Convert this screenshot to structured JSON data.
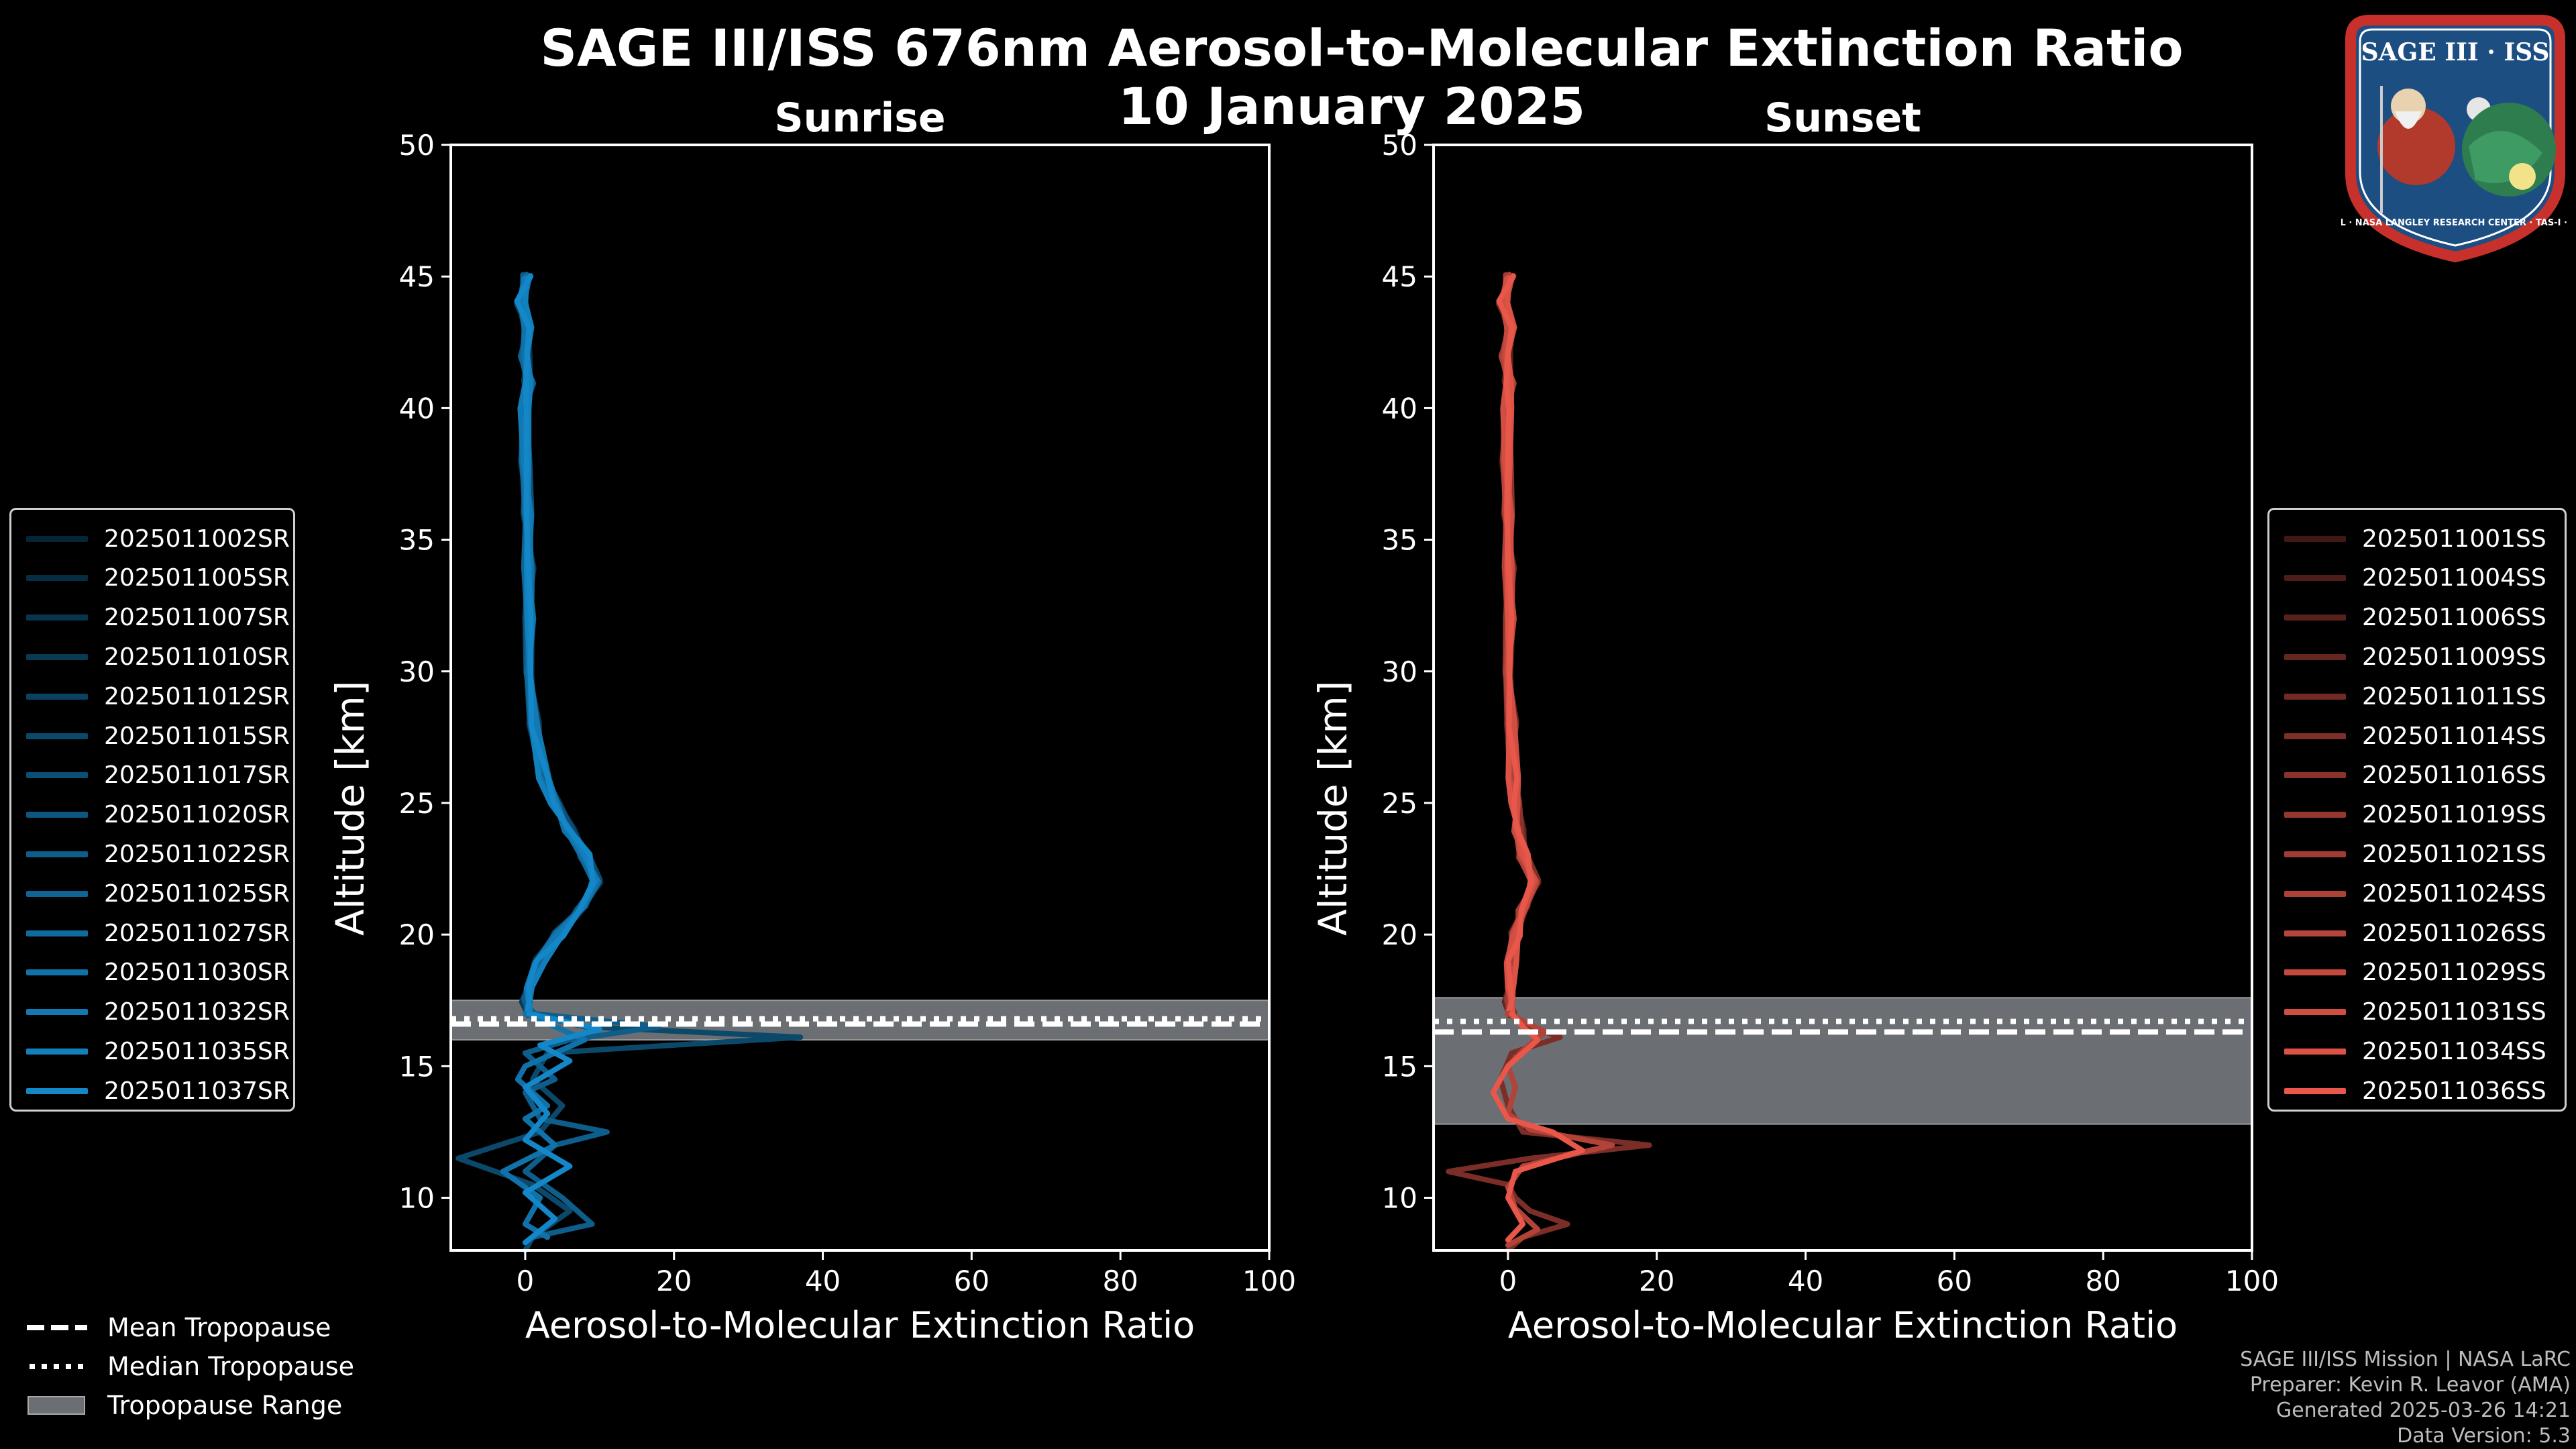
{
  "title_line1": "SAGE III/ISS 676nm Aerosol-to-Molecular Extinction Ratio",
  "title_line2": "10 January 2025",
  "colors": {
    "sunrise": "#1487c8",
    "sunset": "#e8574a",
    "tropopause_band": "#6b6e72",
    "background": "#000000"
  },
  "logo": {
    "line1": "SAGE III · ISS",
    "ring_text": "BALL · NASA LANGLEY RESEARCH CENTER · TAS-I · ESA"
  },
  "bottom_legend": {
    "mean": "Mean Tropopause",
    "median": "Median Tropopause",
    "range": "Tropopause Range"
  },
  "credits": [
    "SAGE III/ISS Mission | NASA LaRC",
    "Preparer: Kevin R. Leavor (AMA)",
    "Generated 2025-03-26 14:21",
    "Data Version: 5.3"
  ],
  "chart_data": [
    {
      "type": "line",
      "title": "Sunrise",
      "xlabel": "Aerosol-to-Molecular Extinction Ratio",
      "ylabel": "Altitude [km]",
      "xlim": [
        -10,
        100
      ],
      "ylim": [
        8,
        50
      ],
      "xticks": [
        0,
        20,
        40,
        60,
        80,
        100
      ],
      "yticks": [
        10,
        15,
        20,
        25,
        30,
        35,
        40,
        45,
        50
      ],
      "tropopause": {
        "mean": 16.6,
        "median": 16.8,
        "range": [
          16.0,
          17.5
        ]
      },
      "legend_entries": [
        "2025011002SR",
        "2025011005SR",
        "2025011007SR",
        "2025011010SR",
        "2025011012SR",
        "2025011015SR",
        "2025011017SR",
        "2025011020SR",
        "2025011022SR",
        "2025011025SR",
        "2025011027SR",
        "2025011030SR",
        "2025011032SR",
        "2025011035SR",
        "2025011037SR"
      ],
      "base_profile": {
        "alt": [
          45,
          44,
          43,
          42,
          41,
          40,
          38,
          36,
          34,
          32,
          30,
          28,
          26,
          25,
          24,
          23,
          22,
          21,
          20,
          19,
          18,
          17.5,
          17
        ],
        "ratio": [
          0.2,
          -0.5,
          0.3,
          0.0,
          0.5,
          0.0,
          0.0,
          0.3,
          0.5,
          0.5,
          0.8,
          1.2,
          2.5,
          4.0,
          6.0,
          8.0,
          9.5,
          7.5,
          4.5,
          2.0,
          0.5,
          0.2,
          0.5
        ]
      },
      "low_traces": [
        {
          "alt": [
            17,
            16.5,
            16.1,
            15.5,
            14.5,
            13.5,
            12.5,
            11.5,
            10.5,
            9.5,
            8.5,
            8.0
          ],
          "ratio": [
            0.5,
            8,
            37,
            3,
            1,
            5,
            2,
            -9,
            1,
            6,
            1,
            0
          ]
        },
        {
          "alt": [
            17,
            16.5,
            16,
            15.5,
            14.5,
            14,
            13,
            12.5,
            12,
            11,
            10,
            9,
            8.5
          ],
          "ratio": [
            1,
            18,
            6,
            0,
            4,
            0,
            2,
            11,
            4,
            0,
            5,
            9,
            1
          ]
        },
        {
          "alt": [
            17,
            16.5,
            16,
            15,
            14.5,
            13.5,
            13,
            12,
            11,
            10,
            9,
            8.5
          ],
          "ratio": [
            0,
            4,
            8,
            0,
            -1,
            3,
            0,
            4,
            -3,
            2,
            0,
            3
          ]
        },
        {
          "alt": [
            17,
            16.4,
            15.8,
            15.2,
            14.2,
            13.2,
            12.2,
            11.2,
            10.2,
            9.2,
            8.3
          ],
          "ratio": [
            0.5,
            10,
            2,
            6,
            0,
            3,
            0,
            6,
            0,
            4,
            0
          ]
        }
      ]
    },
    {
      "type": "line",
      "title": "Sunset",
      "xlabel": "Aerosol-to-Molecular Extinction Ratio",
      "ylabel": "Altitude [km]",
      "xlim": [
        -10,
        100
      ],
      "ylim": [
        8,
        50
      ],
      "xticks": [
        0,
        20,
        40,
        60,
        80,
        100
      ],
      "yticks": [
        10,
        15,
        20,
        25,
        30,
        35,
        40,
        45,
        50
      ],
      "tropopause": {
        "mean": 16.3,
        "median": 16.7,
        "range": [
          12.8,
          17.6
        ]
      },
      "legend_entries": [
        "2025011001SS",
        "2025011004SS",
        "2025011006SS",
        "2025011009SS",
        "2025011011SS",
        "2025011014SS",
        "2025011016SS",
        "2025011019SS",
        "2025011021SS",
        "2025011024SS",
        "2025011026SS",
        "2025011029SS",
        "2025011031SS",
        "2025011034SS",
        "2025011036SS"
      ],
      "base_profile": {
        "alt": [
          45,
          44,
          43,
          42,
          41,
          40,
          38,
          36,
          34,
          32,
          30,
          28,
          26,
          25,
          24,
          23,
          22,
          21,
          20,
          19,
          18,
          17.5,
          17
        ],
        "ratio": [
          0.2,
          -0.6,
          0.3,
          -0.3,
          0.2,
          0.0,
          -0.2,
          0.0,
          0.2,
          0.2,
          0.3,
          0.5,
          0.7,
          1.0,
          1.5,
          2.0,
          3.5,
          2.0,
          1.0,
          0.5,
          0.3,
          0.2,
          0.3
        ]
      },
      "low_traces": [
        {
          "alt": [
            17,
            16.5,
            16.1,
            15.5,
            14.5,
            13.5,
            12.5,
            12.0,
            11.5,
            11.0,
            10.5,
            10.0,
            9.5,
            9.0,
            8.5,
            8.0
          ],
          "ratio": [
            0.3,
            3,
            7,
            0.5,
            -1,
            0,
            2,
            19,
            3,
            -8,
            0,
            1,
            3,
            8,
            2,
            0
          ]
        },
        {
          "alt": [
            17,
            16.3,
            15.6,
            15.0,
            14.2,
            13.2,
            12.6,
            12.0,
            11.2,
            10.4,
            9.6,
            8.8,
            8.2
          ],
          "ratio": [
            0,
            5,
            2,
            0,
            1,
            0,
            3,
            14,
            2,
            0,
            1,
            4,
            0
          ]
        },
        {
          "alt": [
            17,
            16.5,
            16,
            15,
            14,
            13,
            12.5,
            11.8,
            11,
            10,
            9,
            8.4
          ],
          "ratio": [
            0.5,
            2,
            4,
            0,
            -2,
            0,
            6,
            10,
            1,
            0,
            2,
            0
          ]
        }
      ]
    }
  ]
}
